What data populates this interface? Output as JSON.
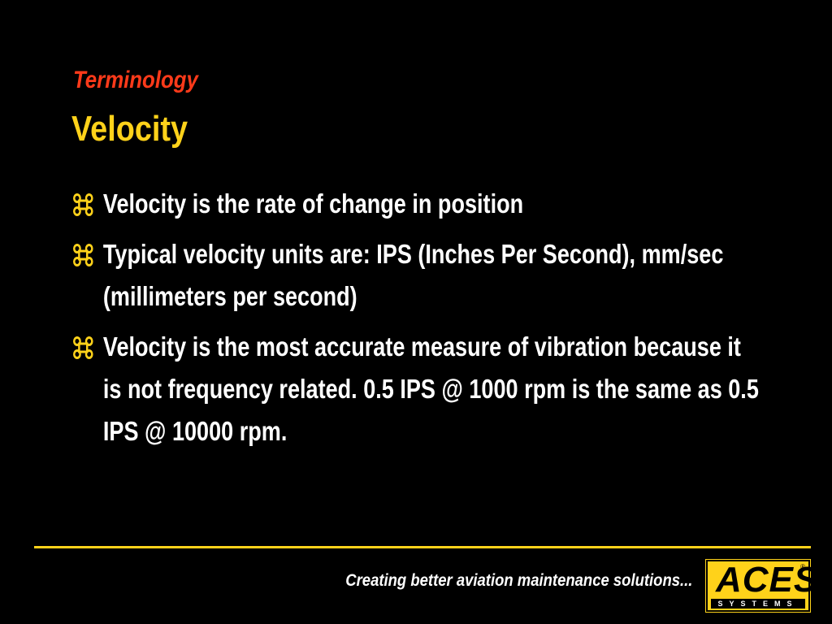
{
  "header": {
    "subtitle": "Terminology",
    "title": "Velocity"
  },
  "bullets": [
    "Velocity is the rate of change in position",
    "Typical velocity units are: IPS (Inches Per Second), mm/sec (millimeters per second)",
    "Velocity is the most accurate measure of vibration because it is not frequency related. 0.5 IPS @ 1000 rpm is the same as 0.5 IPS @ 10000 rpm."
  ],
  "footer": {
    "tagline": "Creating better aviation maintenance solutions...",
    "logo": {
      "name": "ACES",
      "registered": "®",
      "subtitle": "SYSTEMS"
    }
  }
}
